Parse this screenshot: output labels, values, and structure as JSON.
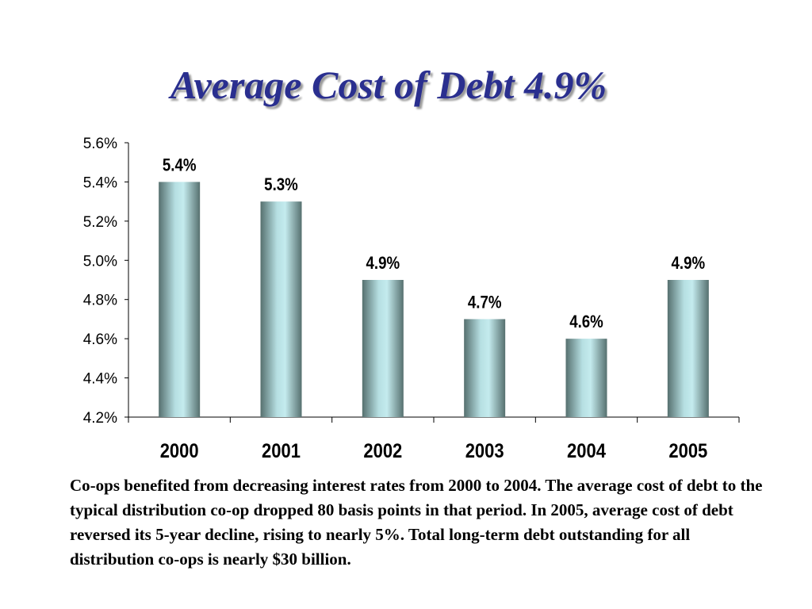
{
  "slide": {
    "title": "Average Cost of Debt 4.9%",
    "caption": "Co-ops benefited from decreasing interest rates from 2000 to 2004.  The average cost of debt to the typical distribution co-op dropped 80 basis points in that period.  In 2005, average cost of debt reversed its 5-year decline, rising to nearly 5%. Total long-term debt outstanding for all distribution co-ops is nearly $30 billion."
  },
  "chart_data": {
    "type": "bar",
    "title": "",
    "xlabel": "",
    "ylabel": "",
    "categories": [
      "2000",
      "2001",
      "2002",
      "2003",
      "2004",
      "2005"
    ],
    "values": [
      5.4,
      5.3,
      4.9,
      4.7,
      4.6,
      4.9
    ],
    "data_labels": [
      "5.4%",
      "5.3%",
      "4.9%",
      "4.7%",
      "4.6%",
      "4.9%"
    ],
    "ylim": [
      4.2,
      5.6
    ],
    "yticks": [
      4.2,
      4.4,
      4.6,
      4.8,
      5.0,
      5.2,
      5.4,
      5.6
    ],
    "ytick_labels": [
      "4.2%",
      "4.4%",
      "4.6%",
      "4.8%",
      "5.0%",
      "5.2%",
      "5.4%",
      "5.6%"
    ],
    "grid": false,
    "legend": "none",
    "colors": {
      "bar_edge": "#5a7a7a",
      "bar_mid": "#bfe6ea",
      "axis": "#000000"
    }
  }
}
